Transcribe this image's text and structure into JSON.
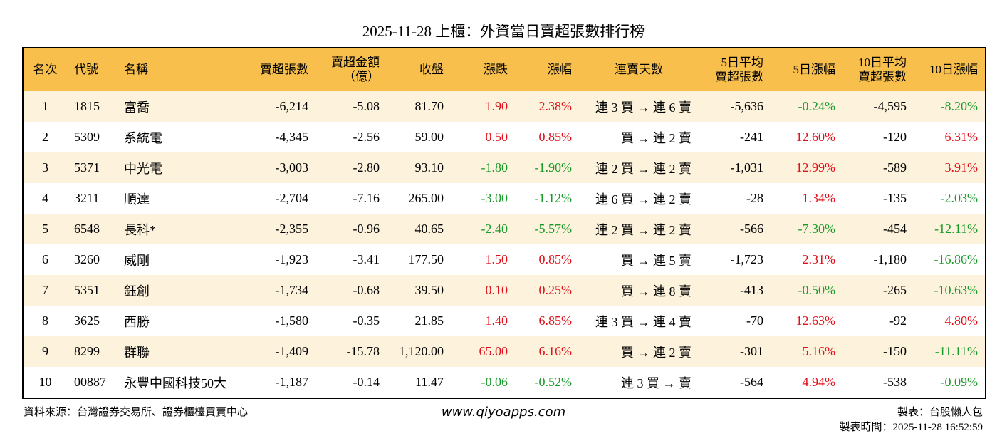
{
  "title": "2025-11-28 上櫃：外資當日賣超張數排行榜",
  "table": {
    "header": [
      [
        "名次"
      ],
      [
        "代號"
      ],
      [
        "名稱"
      ],
      [
        "賣超張數"
      ],
      [
        "賣超金額",
        "（億）"
      ],
      [
        "收盤"
      ],
      [
        "漲跌"
      ],
      [
        "漲幅"
      ],
      [
        "連賣天數"
      ],
      [
        "5日平均",
        "賣超張數"
      ],
      [
        "5日漲幅"
      ],
      [
        "10日平均",
        "賣超張數"
      ],
      [
        "10日漲幅"
      ]
    ],
    "rows": [
      [
        "1",
        "1815",
        "富喬",
        "-6,214",
        "-5.08",
        "81.70",
        "1.90",
        "2.38%",
        "連 3 買 → 連 6 賣",
        "-5,636",
        "-0.24%",
        "-4,595",
        "-8.20%"
      ],
      [
        "2",
        "5309",
        "系統電",
        "-4,345",
        "-2.56",
        "59.00",
        "0.50",
        "0.85%",
        "買 → 連 2 賣",
        "-241",
        "12.60%",
        "-120",
        "6.31%"
      ],
      [
        "3",
        "5371",
        "中光電",
        "-3,003",
        "-2.80",
        "93.10",
        "-1.80",
        "-1.90%",
        "連 2 買 → 連 2 賣",
        "-1,031",
        "12.99%",
        "-589",
        "3.91%"
      ],
      [
        "4",
        "3211",
        "順達",
        "-2,704",
        "-7.16",
        "265.00",
        "-3.00",
        "-1.12%",
        "連 6 買 → 連 2 賣",
        "-28",
        "1.34%",
        "-135",
        "-2.03%"
      ],
      [
        "5",
        "6548",
        "長科*",
        "-2,355",
        "-0.96",
        "40.65",
        "-2.40",
        "-5.57%",
        "連 2 買 → 連 2 賣",
        "-566",
        "-7.30%",
        "-454",
        "-12.11%"
      ],
      [
        "6",
        "3260",
        "威剛",
        "-1,923",
        "-3.41",
        "177.50",
        "1.50",
        "0.85%",
        "買 → 連 5 賣",
        "-1,723",
        "2.31%",
        "-1,180",
        "-16.86%"
      ],
      [
        "7",
        "5351",
        "鈺創",
        "-1,734",
        "-0.68",
        "39.50",
        "0.10",
        "0.25%",
        "買 → 連 8 賣",
        "-413",
        "-0.50%",
        "-265",
        "-10.63%"
      ],
      [
        "8",
        "3625",
        "西勝",
        "-1,580",
        "-0.35",
        "21.85",
        "1.40",
        "6.85%",
        "連 3 買 → 連 4 賣",
        "-70",
        "12.63%",
        "-92",
        "4.80%"
      ],
      [
        "9",
        "8299",
        "群聯",
        "-1,409",
        "-15.78",
        "1,120.00",
        "65.00",
        "6.16%",
        "買 → 連 2 賣",
        "-301",
        "5.16%",
        "-150",
        "-11.11%"
      ],
      [
        "10",
        "00887",
        "永豐中國科技50大",
        "-1,187",
        "-0.14",
        "11.47",
        "-0.06",
        "-0.52%",
        "連 3 買 → 賣",
        "-564",
        "4.94%",
        "-538",
        "-0.09%"
      ]
    ]
  },
  "footer": {
    "source": "資料來源：台灣證券交易所、證券櫃檯買賣中心",
    "url": "www.qiyoapps.com",
    "maker": "製表：台股懶人包",
    "time": "製表時間：2025-11-28 16:52:59"
  }
}
